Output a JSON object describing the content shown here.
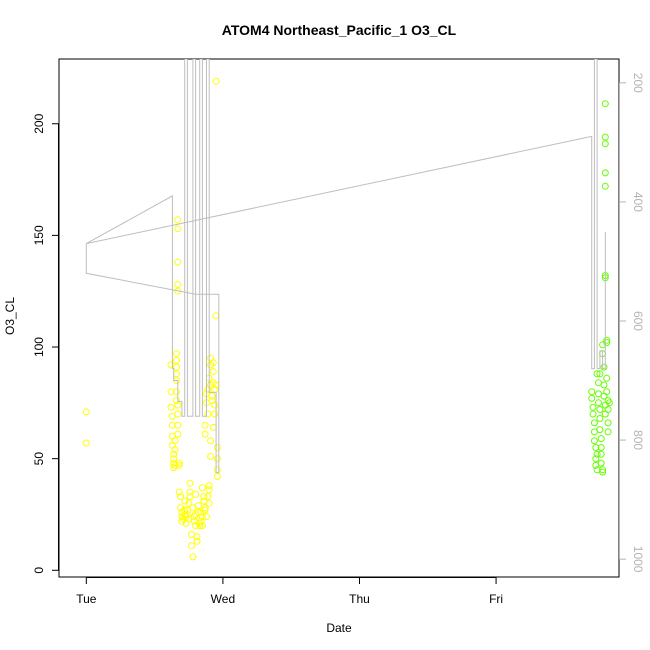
{
  "chart_data": {
    "type": "scatter",
    "title": "ATOM4 Northeast_Pacific_1 O3_CL",
    "xlabel": "Date",
    "ylabel": "O3_CL",
    "x_ticks": [
      "Tue",
      "Wed",
      "Thu",
      "Fri"
    ],
    "x_tick_days": [
      0,
      1,
      2,
      3
    ],
    "xlim_days": [
      -0.2,
      3.9
    ],
    "ylim": [
      -3,
      229
    ],
    "y_ticks": [
      0,
      50,
      100,
      150,
      200
    ],
    "y2_label": "",
    "y2_ticks": [
      200,
      400,
      600,
      800,
      1000
    ],
    "y2_lim_reversed": [
      1030,
      160
    ],
    "grid": false,
    "legend": "none",
    "colors": {
      "axes": "#000000",
      "right_axis": "#b3b3b3",
      "pressure_line": "#bebebe",
      "points_yellow": "#ffff00",
      "points_green": "#66ff00"
    },
    "series": [
      {
        "type": "scatter",
        "values": [
          [
            0.0,
            71
          ],
          [
            0.0,
            57
          ],
          [
            0.62,
            92
          ],
          [
            0.62,
            80
          ],
          [
            0.62,
            73
          ],
          [
            0.63,
            69
          ],
          [
            0.63,
            65
          ],
          [
            0.63,
            60
          ],
          [
            0.63,
            56
          ],
          [
            0.64,
            52
          ],
          [
            0.64,
            50
          ],
          [
            0.64,
            48
          ],
          [
            0.64,
            46
          ],
          [
            0.65,
            58
          ],
          [
            0.65,
            54
          ],
          [
            0.65,
            47
          ],
          [
            0.66,
            97
          ],
          [
            0.66,
            94
          ],
          [
            0.66,
            91
          ],
          [
            0.66,
            88
          ],
          [
            0.66,
            85
          ],
          [
            0.66,
            80
          ],
          [
            0.66,
            76
          ],
          [
            0.67,
            157
          ],
          [
            0.67,
            153
          ],
          [
            0.67,
            138
          ],
          [
            0.67,
            128
          ],
          [
            0.67,
            125
          ],
          [
            0.67,
            74
          ],
          [
            0.67,
            70
          ],
          [
            0.67,
            65
          ],
          [
            0.67,
            61
          ],
          [
            0.68,
            48
          ],
          [
            0.68,
            47
          ],
          [
            0.68,
            35
          ],
          [
            0.69,
            33
          ],
          [
            0.69,
            28
          ],
          [
            0.7,
            26
          ],
          [
            0.7,
            24
          ],
          [
            0.7,
            22
          ],
          [
            0.71,
            23
          ],
          [
            0.72,
            25
          ],
          [
            0.72,
            27
          ],
          [
            0.73,
            24
          ],
          [
            0.73,
            21
          ],
          [
            0.74,
            27
          ],
          [
            0.74,
            25
          ],
          [
            0.75,
            23
          ],
          [
            0.75,
            30
          ],
          [
            0.76,
            39
          ],
          [
            0.76,
            35
          ],
          [
            0.77,
            16
          ],
          [
            0.77,
            11
          ],
          [
            0.78,
            6
          ],
          [
            0.78,
            28
          ],
          [
            0.79,
            24
          ],
          [
            0.79,
            22
          ],
          [
            0.8,
            20
          ],
          [
            0.8,
            25
          ],
          [
            0.81,
            15
          ],
          [
            0.81,
            13
          ],
          [
            0.82,
            26
          ],
          [
            0.82,
            29
          ],
          [
            0.83,
            21
          ],
          [
            0.83,
            20
          ],
          [
            0.84,
            22
          ],
          [
            0.84,
            26
          ],
          [
            0.85,
            24
          ],
          [
            0.85,
            20
          ],
          [
            0.86,
            33
          ],
          [
            0.86,
            31
          ],
          [
            0.87,
            27
          ],
          [
            0.87,
            28
          ],
          [
            0.87,
            65
          ],
          [
            0.87,
            61
          ],
          [
            0.88,
            79
          ],
          [
            0.88,
            75
          ],
          [
            0.89,
            70
          ],
          [
            0.89,
            81
          ],
          [
            0.9,
            86
          ],
          [
            0.9,
            38
          ],
          [
            0.9,
            36
          ],
          [
            0.91,
            95
          ],
          [
            0.91,
            92
          ],
          [
            0.91,
            83
          ],
          [
            0.91,
            58
          ],
          [
            0.91,
            51
          ],
          [
            0.92,
            78
          ],
          [
            0.92,
            76
          ],
          [
            0.93,
            93
          ],
          [
            0.93,
            89
          ],
          [
            0.93,
            84
          ],
          [
            0.93,
            64
          ],
          [
            0.94,
            81
          ],
          [
            0.94,
            74
          ],
          [
            0.94,
            70
          ],
          [
            0.95,
            219
          ],
          [
            0.95,
            114
          ],
          [
            0.95,
            83
          ],
          [
            0.96,
            55
          ],
          [
            0.96,
            50
          ],
          [
            0.96,
            45
          ],
          [
            0.96,
            42
          ],
          [
            0.88,
            24
          ],
          [
            0.89,
            33
          ],
          [
            0.9,
            30
          ],
          [
            0.85,
            37
          ],
          [
            0.76,
            33
          ],
          [
            0.72,
            31
          ],
          [
            0.8,
            34
          ]
        ]
      },
      {
        "type": "scatter",
        "values": [
          [
            3.7,
            80
          ],
          [
            3.7,
            77
          ],
          [
            3.71,
            73
          ],
          [
            3.71,
            70
          ],
          [
            3.72,
            66
          ],
          [
            3.72,
            62
          ],
          [
            3.72,
            58
          ],
          [
            3.73,
            55
          ],
          [
            3.73,
            50
          ],
          [
            3.73,
            47
          ],
          [
            3.74,
            45
          ],
          [
            3.74,
            88
          ],
          [
            3.75,
            84
          ],
          [
            3.75,
            79
          ],
          [
            3.75,
            75
          ],
          [
            3.76,
            72
          ],
          [
            3.76,
            68
          ],
          [
            3.76,
            63
          ],
          [
            3.77,
            59
          ],
          [
            3.77,
            55
          ],
          [
            3.77,
            52
          ],
          [
            3.77,
            48
          ],
          [
            3.78,
            45
          ],
          [
            3.78,
            44
          ],
          [
            3.78,
            101
          ],
          [
            3.78,
            97
          ],
          [
            3.79,
            91
          ],
          [
            3.79,
            83
          ],
          [
            3.79,
            78
          ],
          [
            3.8,
            74
          ],
          [
            3.8,
            70
          ],
          [
            3.8,
            209
          ],
          [
            3.8,
            194
          ],
          [
            3.8,
            191
          ],
          [
            3.8,
            178
          ],
          [
            3.8,
            172
          ],
          [
            3.8,
            132
          ],
          [
            3.8,
            131
          ],
          [
            3.81,
            103
          ],
          [
            3.81,
            102
          ],
          [
            3.81,
            86
          ],
          [
            3.81,
            80
          ],
          [
            3.82,
            76
          ],
          [
            3.82,
            72
          ],
          [
            3.82,
            66
          ],
          [
            3.82,
            62
          ],
          [
            3.83,
            75
          ],
          [
            3.76,
            88
          ],
          [
            3.74,
            52
          ]
        ]
      },
      {
        "type": "line",
        "axis": "right",
        "values": [
          [
            0.0,
            470
          ],
          [
            0.0,
            520
          ],
          [
            0.8,
            555
          ],
          [
            0.97,
            555
          ],
          [
            0.97,
            855
          ],
          [
            0.95,
            855
          ],
          [
            0.95,
            720
          ],
          [
            0.9,
            720
          ],
          [
            0.9,
            160
          ],
          [
            0.88,
            160
          ],
          [
            0.88,
            760
          ],
          [
            0.85,
            760
          ],
          [
            0.85,
            160
          ],
          [
            0.83,
            160
          ],
          [
            0.83,
            760
          ],
          [
            0.8,
            760
          ],
          [
            0.8,
            160
          ],
          [
            0.78,
            160
          ],
          [
            0.78,
            760
          ],
          [
            0.74,
            760
          ],
          [
            0.74,
            160
          ],
          [
            0.72,
            160
          ],
          [
            0.72,
            760
          ],
          [
            0.7,
            760
          ],
          [
            0.7,
            735
          ],
          [
            0.67,
            735
          ],
          [
            0.67,
            700
          ],
          [
            0.64,
            700
          ],
          [
            0.64,
            680
          ],
          [
            0.63,
            680
          ],
          [
            0.63,
            390
          ],
          [
            0.63,
            390
          ],
          [
            0.0,
            470
          ],
          [
            0.0,
            470
          ],
          [
            3.7,
            290
          ],
          [
            3.7,
            680
          ],
          [
            3.72,
            680
          ],
          [
            3.72,
            160
          ],
          [
            3.74,
            160
          ],
          [
            3.74,
            680
          ],
          [
            3.76,
            680
          ],
          [
            3.76,
            650
          ],
          [
            3.78,
            650
          ],
          [
            3.78,
            680
          ],
          [
            3.8,
            680
          ],
          [
            3.8,
            450
          ]
        ]
      }
    ]
  }
}
